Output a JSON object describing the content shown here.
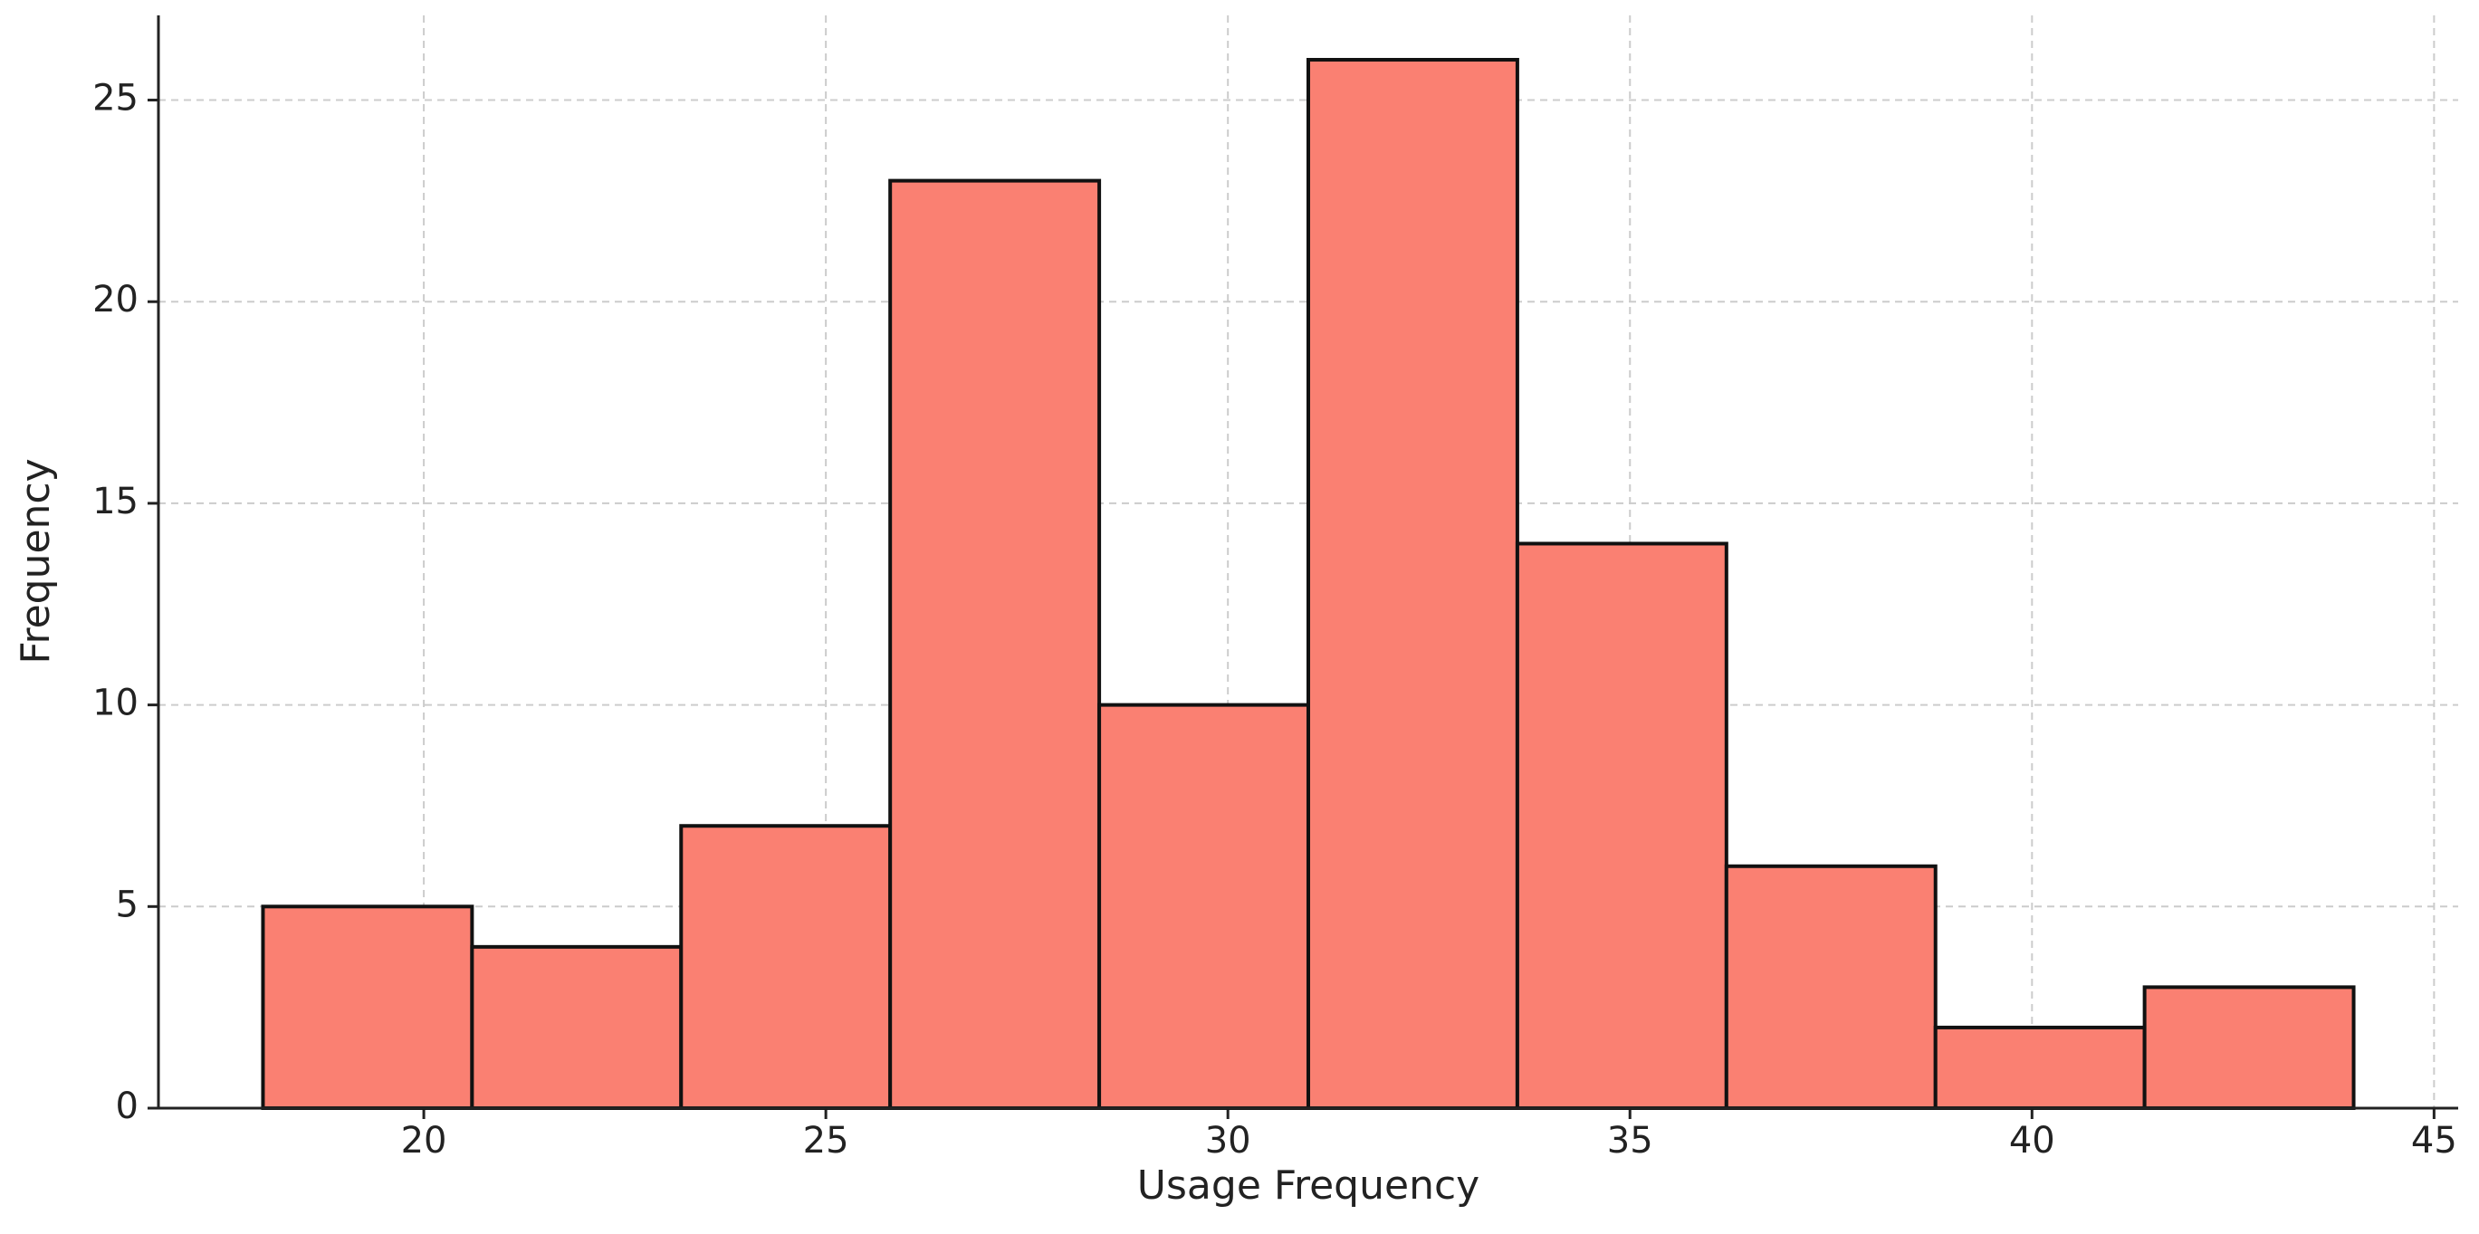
{
  "chart_data": {
    "type": "histogram",
    "xlabel": "Usage Frequency",
    "ylabel": "Frequency",
    "bins": [
      18,
      20.6,
      23.2,
      25.8,
      28.4,
      31,
      33.6,
      36.2,
      38.8,
      41.4,
      44
    ],
    "counts": [
      5,
      4,
      7,
      23,
      10,
      26,
      14,
      6,
      2,
      3
    ],
    "color": "#fa8072",
    "edgecolor": "#111111",
    "xlim": [
      16.7,
      45.3
    ],
    "ylim": [
      0,
      27.1
    ],
    "xticks": [
      20,
      25,
      30,
      35,
      40,
      45
    ],
    "yticks": [
      0,
      5,
      10,
      15,
      20,
      25
    ],
    "grid": true
  }
}
